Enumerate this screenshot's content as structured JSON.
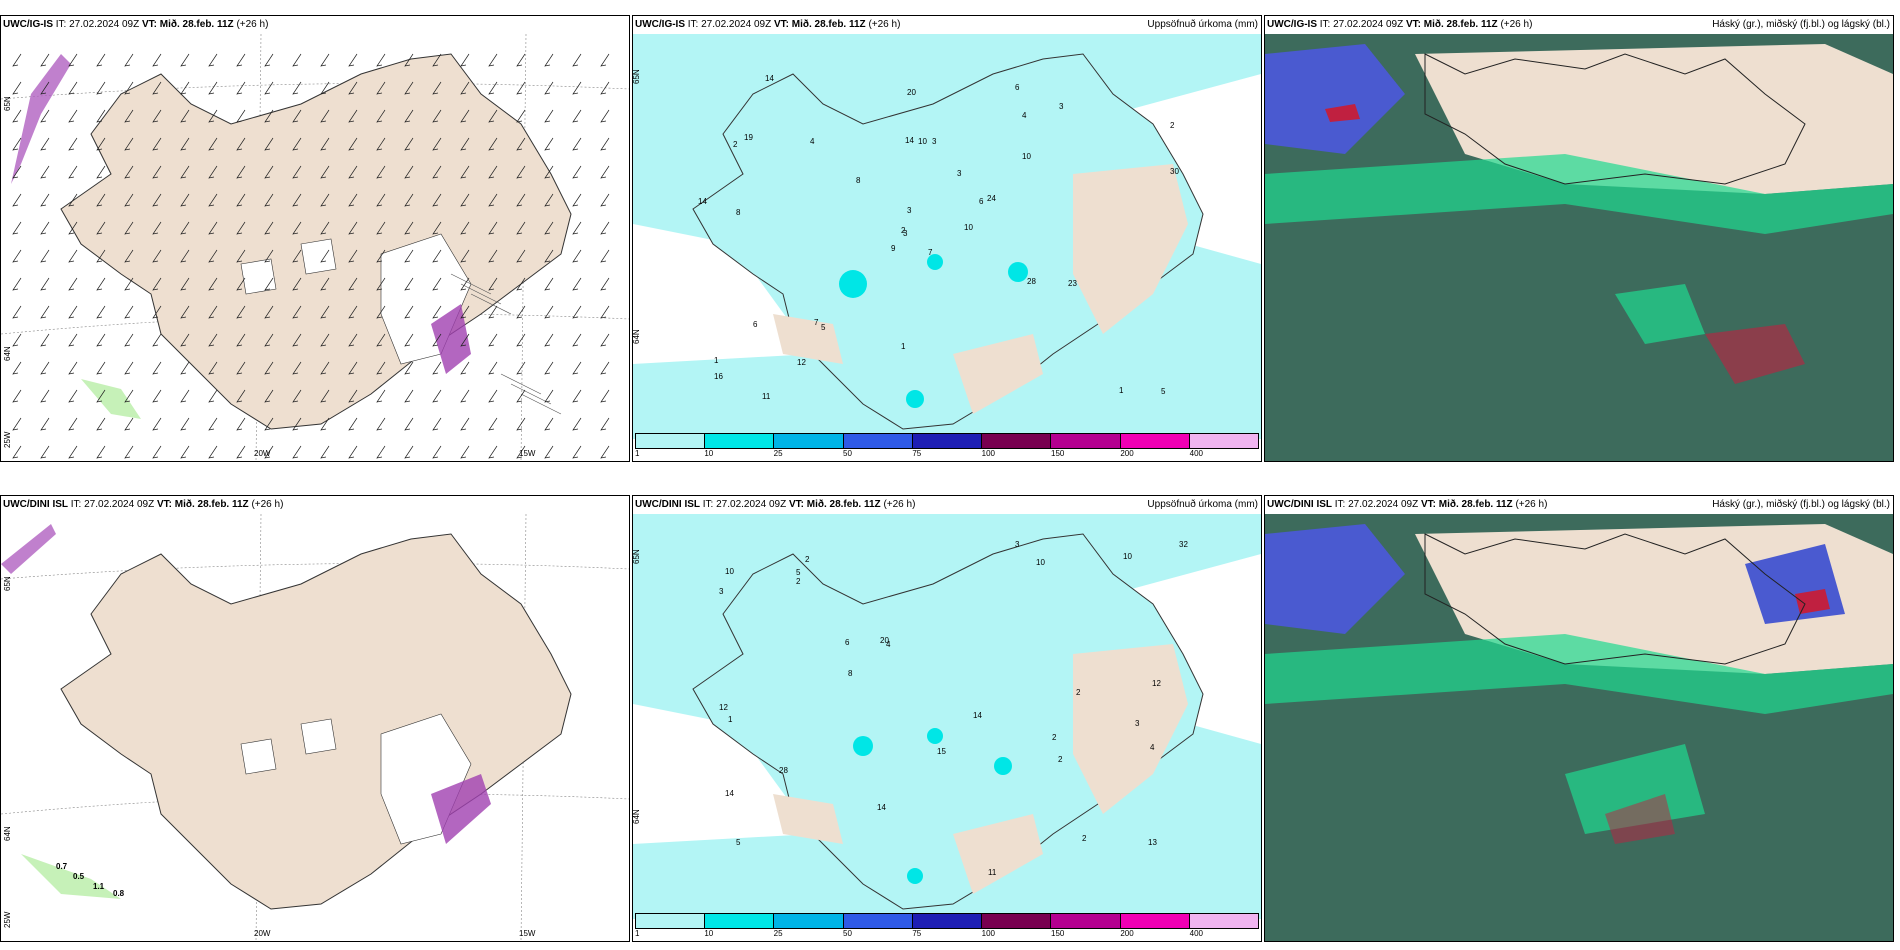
{
  "rows": [
    {
      "model": "UWC/IG-IS",
      "it_label": "IT:",
      "it_value": "27.02.2024 09Z",
      "vt_label": "VT:",
      "vt_value": "Mið. 28.feb. 11Z",
      "lead": "(+26 h)"
    },
    {
      "model": "UWC/DINI ISL",
      "it_label": "IT:",
      "it_value": "27.02.2024 09Z",
      "vt_label": "VT:",
      "vt_value": "Mið. 28.feb. 11Z",
      "lead": "(+26 h)"
    }
  ],
  "precip_title": "Uppsöfnuð úrkoma (mm)",
  "cloud_title": "Háský (gr.), miðský (fj.bl.) og lágský (bl.)",
  "axis": {
    "lon_20w": "20W",
    "lon_15w": "15W",
    "lat_65n": "65N",
    "lat_64n": "64N",
    "lon_25w": "25W"
  },
  "legend": {
    "ticks": [
      "1",
      "10",
      "25",
      "50",
      "75",
      "100",
      "150",
      "200",
      "400"
    ],
    "colors": [
      "#b3f5f5",
      "#00e6e6",
      "#00b4e6",
      "#2f5ae6",
      "#1e1eb4",
      "#780050",
      "#b40090",
      "#f000b4",
      "#f0b4f0"
    ]
  },
  "colors": {
    "land": "#eedfd0",
    "precip_light": "#b3f5f5",
    "precip_mid": "#00e6e6",
    "cloud_dark": "#3d6b5c",
    "cloud_green": "#20d890",
    "cloud_blue": "#4a5ad0",
    "cloud_red": "#c02040"
  },
  "top_precip_values": [
    "7",
    "2",
    "3",
    "1",
    "6",
    "5",
    "6",
    "3",
    "4",
    "10",
    "14",
    "5",
    "8",
    "2",
    "9",
    "10",
    "11",
    "14",
    "3",
    "6",
    "8",
    "16",
    "12",
    "10",
    "24",
    "23",
    "19",
    "20",
    "14",
    "28",
    "30",
    "2",
    "1",
    "3",
    "4",
    "3",
    "7",
    "1"
  ],
  "bottom_precip_values": [
    "2",
    "3",
    "5",
    "2",
    "4",
    "2",
    "14",
    "10",
    "6",
    "11",
    "3",
    "12",
    "10",
    "13",
    "14",
    "12",
    "15",
    "14",
    "20",
    "28",
    "32",
    "10",
    "8",
    "4",
    "3",
    "5",
    "2",
    "1",
    "2",
    "2"
  ],
  "bottom_wind_values": [
    "0.7",
    "0.5",
    "1.1",
    "0.8"
  ]
}
